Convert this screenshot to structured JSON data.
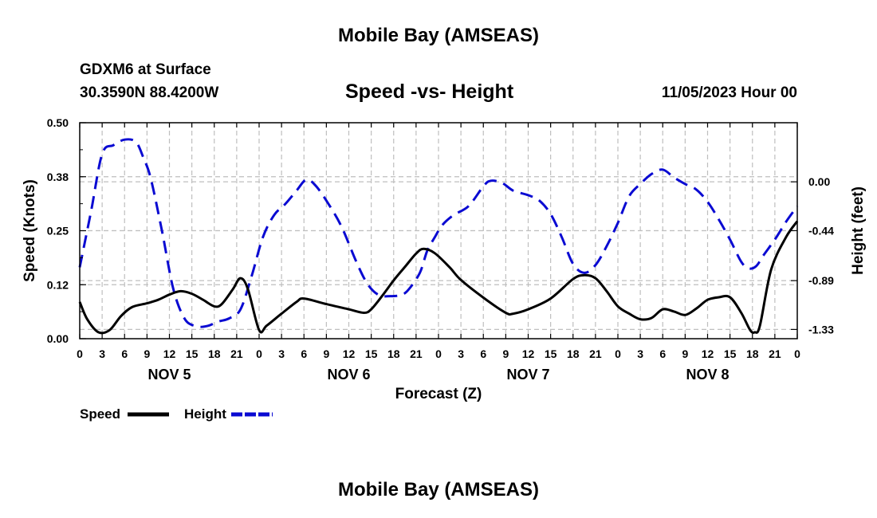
{
  "page_title": "Mobile Bay (AMSEAS)",
  "station": "GDXM6 at Surface",
  "coords": "30.3590N  88.4200W",
  "datetime": "11/05/2023 Hour 00",
  "bottom_title": "Mobile Bay (AMSEAS)",
  "colors": {
    "speed": "#000000",
    "height": "#0a0ad2",
    "grid": "#bfbfbf"
  },
  "chart_data": {
    "type": "line",
    "title": "Speed -vs- Height",
    "xlabel": "Forecast (Z)",
    "ylabel_left": "Speed (Knots)",
    "ylabel_right": "Height (feet)",
    "x_range_hours": [
      0,
      96
    ],
    "y_left_range": [
      0,
      0.5
    ],
    "y_right_range": [
      -1.4132,
      0.5323
    ],
    "y_left_ticks": [
      "0.00",
      "0.12",
      "0.25",
      "0.38",
      "0.50"
    ],
    "y_left_tick_values": [
      0,
      0.125,
      0.25,
      0.375,
      0.5
    ],
    "y_right_ticks": [
      "-1.33",
      "-0.89",
      "-0.44",
      "0.00"
    ],
    "y_right_tick_values": [
      -1.33,
      -0.89,
      -0.44,
      0.0
    ],
    "x_tick_labels": [
      "0",
      "3",
      "6",
      "9",
      "12",
      "15",
      "18",
      "21",
      "0",
      "3",
      "6",
      "9",
      "12",
      "15",
      "18",
      "21",
      "0",
      "3",
      "6",
      "9",
      "12",
      "15",
      "18",
      "21",
      "0",
      "3",
      "6",
      "9",
      "12",
      "15",
      "18",
      "21",
      "0"
    ],
    "x_tick_hours": [
      0,
      3,
      6,
      9,
      12,
      15,
      18,
      21,
      24,
      27,
      30,
      33,
      36,
      39,
      42,
      45,
      48,
      51,
      54,
      57,
      60,
      63,
      66,
      69,
      72,
      75,
      78,
      81,
      84,
      87,
      90,
      93,
      96
    ],
    "day_labels": [
      "NOV 5",
      "NOV 6",
      "NOV 7",
      "NOV 8"
    ],
    "day_label_hours": [
      12,
      36,
      60,
      84
    ],
    "legend": [
      "Speed",
      "Height"
    ],
    "series": [
      {
        "name": "Speed",
        "units": "knots",
        "x": [
          0,
          1,
          2.5,
          4,
          5.5,
          7,
          9,
          10.5,
          12,
          13.5,
          15,
          16.5,
          18,
          19,
          20.5,
          21.5,
          22.5,
          24,
          25,
          27,
          29,
          30,
          33,
          36,
          38,
          39,
          40.5,
          42,
          43.5,
          45,
          46,
          47.5,
          49.5,
          51,
          54,
          57,
          58,
          60,
          63,
          66,
          67.5,
          69,
          70.5,
          72,
          73.5,
          75,
          76.5,
          78,
          79.5,
          81,
          82.5,
          84,
          85.5,
          87,
          88.5,
          89.7,
          90.3,
          91,
          92.5,
          94.5,
          96
        ],
        "values": [
          0.085,
          0.045,
          0.015,
          0.02,
          0.052,
          0.073,
          0.082,
          0.09,
          0.102,
          0.11,
          0.104,
          0.09,
          0.075,
          0.08,
          0.115,
          0.14,
          0.115,
          0.02,
          0.03,
          0.058,
          0.085,
          0.093,
          0.08,
          0.068,
          0.06,
          0.068,
          0.1,
          0.135,
          0.166,
          0.197,
          0.208,
          0.198,
          0.165,
          0.136,
          0.095,
          0.06,
          0.058,
          0.068,
          0.093,
          0.138,
          0.147,
          0.14,
          0.11,
          0.075,
          0.058,
          0.045,
          0.048,
          0.068,
          0.063,
          0.055,
          0.07,
          0.09,
          0.096,
          0.096,
          0.06,
          0.02,
          0.015,
          0.03,
          0.16,
          0.235,
          0.272
        ]
      },
      {
        "name": "Height",
        "units": "feet",
        "x": [
          0,
          1.5,
          3,
          4.5,
          6,
          7.5,
          8.5,
          9.5,
          11,
          12.5,
          14,
          15.5,
          17,
          18.5,
          20,
          21.5,
          23,
          24.5,
          26,
          27.5,
          29,
          30.3,
          31.5,
          33,
          35,
          37,
          38.5,
          40,
          41.5,
          43,
          44,
          45.5,
          46.5,
          47.5,
          48.5,
          50,
          52,
          54,
          55,
          56.5,
          58,
          60,
          61.5,
          63,
          64.5,
          66,
          67.5,
          69,
          70.5,
          72,
          73.5,
          75,
          76.5,
          78,
          79.5,
          81,
          82.5,
          84,
          85.5,
          87,
          88.5,
          89.5,
          90.5,
          91.5,
          93,
          94.5,
          96
        ],
        "values": [
          -0.77,
          -0.27,
          0.25,
          0.33,
          0.38,
          0.36,
          0.22,
          0.03,
          -0.44,
          -0.96,
          -1.23,
          -1.3,
          -1.3,
          -1.26,
          -1.23,
          -1.15,
          -0.85,
          -0.5,
          -0.3,
          -0.2,
          -0.08,
          0.02,
          -0.03,
          -0.17,
          -0.4,
          -0.72,
          -0.92,
          -1.02,
          -1.03,
          -1.02,
          -0.97,
          -0.82,
          -0.62,
          -0.5,
          -0.39,
          -0.3,
          -0.22,
          -0.04,
          0.01,
          -0.01,
          -0.08,
          -0.12,
          -0.17,
          -0.29,
          -0.5,
          -0.74,
          -0.82,
          -0.75,
          -0.58,
          -0.37,
          -0.13,
          -0.02,
          0.07,
          0.11,
          0.04,
          -0.02,
          -0.07,
          -0.18,
          -0.34,
          -0.52,
          -0.72,
          -0.78,
          -0.76,
          -0.66,
          -0.52,
          -0.36,
          -0.22
        ]
      }
    ]
  }
}
